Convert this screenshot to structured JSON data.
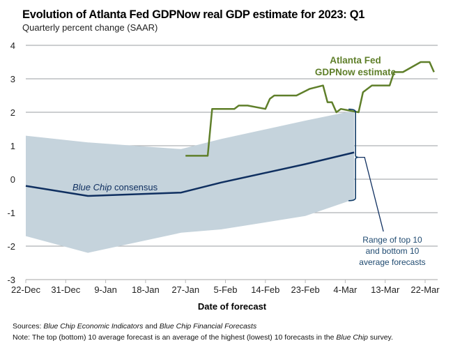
{
  "chart_data": {
    "type": "line",
    "title": "Evolution of Atlanta Fed GDPNow real GDP estimate for 2023: Q1",
    "subtitle": "Quarterly percent change (SAAR)",
    "xlabel": "Date of forecast",
    "ylabel": "",
    "ylim": [
      -3,
      4
    ],
    "yticks": [
      "4",
      "3",
      "2",
      "1",
      "0",
      "-1",
      "-2",
      "-3"
    ],
    "ytick_values": [
      4,
      3,
      2,
      1,
      0,
      -1,
      -2,
      -3
    ],
    "xticks": [
      "22-Dec",
      "31-Dec",
      "9-Jan",
      "18-Jan",
      "27-Jan",
      "5-Feb",
      "14-Feb",
      "23-Feb",
      "4-Mar",
      "13-Mar",
      "22-Mar"
    ],
    "x_unit": "days since 22-Dec",
    "xlim": [
      0,
      93
    ],
    "grid": true,
    "series": [
      {
        "name": "Atlanta Fed GDPNow estimate",
        "color": "#5f7f2a",
        "x": [
          36,
          41,
          42,
          47,
          48,
          50,
          54,
          55,
          56,
          61,
          64,
          67,
          68,
          69,
          70,
          71,
          73,
          75,
          76,
          78,
          82,
          83,
          85,
          89,
          91,
          92
        ],
        "values": [
          0.7,
          0.7,
          2.1,
          2.1,
          2.2,
          2.2,
          2.1,
          2.4,
          2.5,
          2.5,
          2.7,
          2.8,
          2.3,
          2.3,
          2.0,
          2.1,
          2.05,
          2.0,
          2.6,
          2.8,
          2.8,
          3.2,
          3.2,
          3.5,
          3.5,
          3.2
        ]
      },
      {
        "name": "Blue Chip consensus",
        "color": "#0f2f60",
        "x": [
          0,
          14,
          35,
          44,
          63,
          74
        ],
        "values": [
          -0.2,
          -0.5,
          -0.4,
          -0.1,
          0.45,
          0.8
        ]
      }
    ],
    "band": {
      "name": "Range of top 10 and bottom 10 average forecasts",
      "color": "#c5d3dc",
      "x": [
        0,
        14,
        35,
        44,
        63,
        74
      ],
      "upper": [
        1.3,
        1.1,
        0.9,
        1.2,
        1.75,
        2.05
      ],
      "lower": [
        -1.7,
        -2.2,
        -1.6,
        -1.5,
        -1.1,
        -0.6
      ]
    },
    "annotations": {
      "gdpnow_label": [
        "Atlanta Fed",
        "GDPNow estimate"
      ],
      "consensus_label_italic": "Blue Chip",
      "consensus_label_rest": " consensus",
      "range_label": [
        "Range of top 10",
        "and bottom 10",
        "average forecasts"
      ]
    }
  },
  "footer": {
    "sources_label": "Sources:",
    "sources_text_1": "Blue Chip Economic Indicators",
    "sources_and": " and ",
    "sources_text_2": "Blue Chip Financial Forecasts",
    "note_label": "Note:",
    "note_text_1": " The top (bottom) 10 average forecast is an average of the highest (lowest) 10 forecasts in the ",
    "note_italic": "Blue Chip",
    "note_text_2": " survey."
  }
}
